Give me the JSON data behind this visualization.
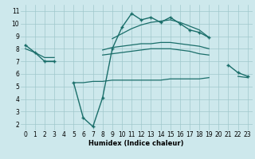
{
  "x": [
    0,
    1,
    2,
    3,
    4,
    5,
    6,
    7,
    8,
    9,
    10,
    11,
    12,
    13,
    14,
    15,
    16,
    17,
    18,
    19,
    20,
    21,
    22,
    23
  ],
  "line_main": [
    8.3,
    7.7,
    7.0,
    7.0,
    null,
    5.3,
    2.5,
    1.8,
    4.1,
    8.0,
    9.7,
    10.8,
    10.3,
    10.5,
    10.1,
    10.5,
    10.0,
    9.5,
    9.3,
    8.9,
    null,
    6.7,
    6.1,
    5.8
  ],
  "line_upper": [
    8.3,
    null,
    null,
    null,
    null,
    null,
    null,
    null,
    null,
    8.8,
    9.2,
    9.6,
    9.9,
    10.1,
    10.2,
    10.3,
    10.1,
    9.8,
    9.5,
    8.9,
    null,
    null,
    null,
    null
  ],
  "line_mid": [
    8.0,
    7.7,
    7.3,
    7.3,
    null,
    null,
    null,
    null,
    7.9,
    8.1,
    8.2,
    8.3,
    8.4,
    8.4,
    8.5,
    8.5,
    8.4,
    8.3,
    8.2,
    8.0,
    null,
    null,
    null,
    null
  ],
  "line_lower": [
    7.8,
    null,
    7.0,
    7.0,
    null,
    null,
    null,
    null,
    7.5,
    7.6,
    7.7,
    7.8,
    7.9,
    8.0,
    8.0,
    8.0,
    7.9,
    7.8,
    7.6,
    7.5,
    null,
    null,
    null,
    null
  ],
  "line_flat": [
    null,
    null,
    null,
    null,
    null,
    5.3,
    5.3,
    5.4,
    5.4,
    5.5,
    5.5,
    5.5,
    5.5,
    5.5,
    5.5,
    5.6,
    5.6,
    5.6,
    5.6,
    5.7,
    null,
    null,
    5.8,
    5.7
  ],
  "bg_color": "#cde8ec",
  "grid_color": "#a0c8cc",
  "line_color": "#1a6e6a",
  "xlabel": "Humidex (Indice chaleur)",
  "ylim": [
    1.5,
    11.5
  ],
  "xlim": [
    -0.5,
    23.5
  ],
  "yticks": [
    2,
    3,
    4,
    5,
    6,
    7,
    8,
    9,
    10,
    11
  ],
  "xticks": [
    0,
    1,
    2,
    3,
    4,
    5,
    6,
    7,
    8,
    9,
    10,
    11,
    12,
    13,
    14,
    15,
    16,
    17,
    18,
    19,
    20,
    21,
    22,
    23
  ]
}
